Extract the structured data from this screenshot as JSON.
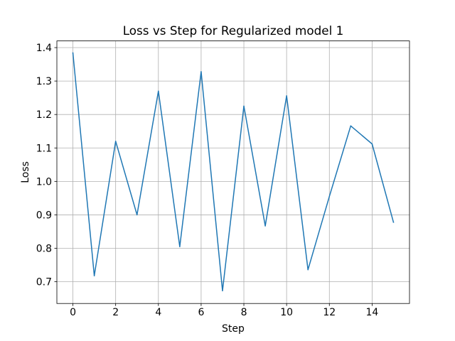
{
  "chart_data": {
    "type": "line",
    "title": "Loss vs Step for Regularized model 1",
    "xlabel": "Step",
    "ylabel": "Loss",
    "xlim": [
      -0.75,
      15.75
    ],
    "ylim": [
      0.635,
      1.42
    ],
    "xticks": [
      0,
      2,
      4,
      6,
      8,
      10,
      12,
      14
    ],
    "yticks": [
      0.7,
      0.8,
      0.9,
      1.0,
      1.1,
      1.2,
      1.3,
      1.4
    ],
    "xtick_labels": [
      "0",
      "2",
      "4",
      "6",
      "8",
      "10",
      "12",
      "14"
    ],
    "ytick_labels": [
      "0.7",
      "0.8",
      "0.9",
      "1.0",
      "1.1",
      "1.2",
      "1.3",
      "1.4"
    ],
    "grid": true,
    "series": [
      {
        "color": "#1f77b4",
        "x": [
          0,
          1,
          2,
          3,
          4,
          5,
          6,
          7,
          8,
          9,
          10,
          11,
          12,
          13,
          14,
          15
        ],
        "values": [
          1.384,
          0.718,
          1.12,
          0.9,
          1.27,
          0.805,
          1.328,
          0.673,
          1.225,
          0.867,
          1.256,
          0.736,
          0.955,
          1.166,
          1.112,
          0.878
        ]
      }
    ]
  }
}
